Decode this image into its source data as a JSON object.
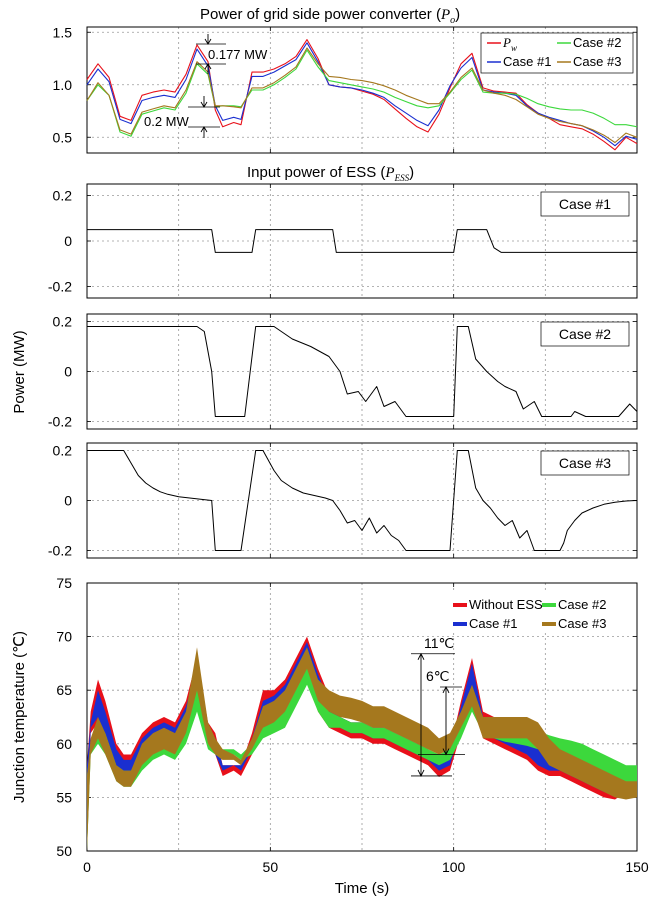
{
  "chart_data": [
    {
      "type": "line",
      "title": "Power of grid side power converter (",
      "title_symbol": "P",
      "title_subscript": "o",
      "title_suffix": ")",
      "xlim": [
        0,
        150
      ],
      "ylim": [
        0.35,
        1.55
      ],
      "yticks": [
        "0.5",
        "1.0",
        "1.5"
      ],
      "grid": true,
      "legend_position": "top-right",
      "x": [
        0,
        3,
        6,
        9,
        12,
        15,
        18,
        21,
        24,
        27,
        30,
        33,
        35,
        37,
        40,
        42,
        45,
        48,
        51,
        54,
        57,
        60,
        63,
        66,
        69,
        72,
        75,
        78,
        81,
        84,
        87,
        90,
        93,
        96,
        99,
        102,
        105,
        108,
        111,
        114,
        117,
        120,
        123,
        126,
        129,
        132,
        135,
        138,
        141,
        144,
        147,
        150
      ],
      "series": [
        {
          "name": "P",
          "name_sub": "w",
          "color": "#e8101a",
          "values": [
            1.05,
            1.2,
            1.07,
            0.7,
            0.66,
            0.9,
            0.93,
            0.95,
            0.93,
            1.1,
            1.38,
            1.22,
            0.76,
            0.6,
            0.64,
            0.62,
            1.12,
            1.12,
            1.15,
            1.2,
            1.27,
            1.43,
            1.25,
            1.0,
            0.98,
            0.97,
            0.94,
            0.91,
            0.86,
            0.77,
            0.68,
            0.6,
            0.55,
            0.72,
            0.97,
            1.2,
            1.3,
            0.97,
            0.94,
            0.93,
            0.92,
            0.81,
            0.73,
            0.68,
            0.62,
            0.6,
            0.58,
            0.53,
            0.46,
            0.38,
            0.5,
            0.44
          ]
        },
        {
          "name": "Case #1",
          "color": "#1a2fd0",
          "values": [
            1.0,
            1.15,
            1.03,
            0.67,
            0.63,
            0.85,
            0.88,
            0.9,
            0.88,
            1.05,
            1.34,
            1.18,
            0.8,
            0.66,
            0.69,
            0.67,
            1.08,
            1.08,
            1.12,
            1.18,
            1.24,
            1.4,
            1.22,
            1.0,
            0.98,
            0.97,
            0.95,
            0.92,
            0.88,
            0.8,
            0.73,
            0.66,
            0.61,
            0.76,
            0.99,
            1.16,
            1.26,
            0.95,
            0.93,
            0.92,
            0.9,
            0.8,
            0.73,
            0.69,
            0.66,
            0.63,
            0.61,
            0.56,
            0.5,
            0.42,
            0.51,
            0.48
          ]
        },
        {
          "name": "Case #2",
          "color": "#3cd83c",
          "values": [
            0.85,
            1.0,
            0.9,
            0.55,
            0.51,
            0.72,
            0.75,
            0.78,
            0.76,
            0.92,
            1.2,
            1.1,
            0.79,
            0.8,
            0.8,
            0.79,
            0.95,
            0.95,
            1.0,
            1.07,
            1.15,
            1.33,
            1.17,
            1.04,
            1.02,
            1.0,
            0.98,
            0.96,
            0.93,
            0.88,
            0.84,
            0.8,
            0.78,
            0.8,
            0.92,
            1.05,
            1.14,
            0.93,
            0.92,
            0.92,
            0.91,
            0.87,
            0.82,
            0.79,
            0.77,
            0.76,
            0.76,
            0.73,
            0.68,
            0.62,
            0.62,
            0.6
          ]
        },
        {
          "name": "Case #3",
          "color": "#a5781e",
          "values": [
            0.85,
            1.02,
            0.9,
            0.57,
            0.53,
            0.74,
            0.77,
            0.8,
            0.78,
            0.95,
            1.22,
            1.12,
            0.8,
            0.8,
            0.79,
            0.78,
            0.97,
            0.97,
            1.02,
            1.09,
            1.17,
            1.35,
            1.2,
            1.08,
            1.07,
            1.05,
            1.04,
            1.02,
            0.99,
            0.95,
            0.9,
            0.86,
            0.82,
            0.82,
            0.93,
            1.07,
            1.16,
            0.95,
            0.92,
            0.9,
            0.86,
            0.79,
            0.72,
            0.68,
            0.65,
            0.63,
            0.61,
            0.57,
            0.52,
            0.45,
            0.54,
            0.5
          ]
        }
      ],
      "annotations": [
        "0.177 MW",
        "0.2 MW"
      ]
    },
    {
      "type": "line",
      "title": "Input power of ESS (",
      "title_symbol": "P",
      "title_subscript": "ESS",
      "title_suffix": ")",
      "ylabel": "Power (MW)",
      "xlim": [
        0,
        150
      ],
      "panels": [
        {
          "name": "Case #1",
          "ylim": [
            -0.25,
            0.25
          ],
          "yticks": [
            "0.2",
            "0",
            "-0.2"
          ],
          "x": [
            0,
            34,
            35,
            45,
            46,
            67,
            68,
            100,
            101,
            109,
            111,
            113,
            150
          ],
          "values": [
            0.05,
            0.05,
            -0.05,
            -0.05,
            0.05,
            0.05,
            -0.05,
            -0.05,
            0.05,
            0.05,
            -0.03,
            -0.05,
            -0.05
          ]
        },
        {
          "name": "Case #2",
          "ylim": [
            -0.23,
            0.23
          ],
          "yticks": [
            "0.2",
            "0",
            "-0.2"
          ],
          "x": [
            0,
            30,
            32,
            34,
            35,
            43,
            46,
            51,
            56,
            61,
            66,
            69,
            71,
            74,
            76,
            79,
            81,
            84,
            87,
            92,
            97,
            100,
            101,
            104,
            106,
            109,
            112,
            114,
            117,
            119,
            122,
            124,
            127,
            132,
            133,
            136,
            142,
            145,
            148,
            150
          ],
          "values": [
            0.18,
            0.18,
            0.16,
            0.0,
            -0.18,
            -0.18,
            0.18,
            0.18,
            0.13,
            0.1,
            0.06,
            0.0,
            -0.09,
            -0.08,
            -0.12,
            -0.06,
            -0.14,
            -0.12,
            -0.18,
            -0.18,
            -0.18,
            -0.18,
            0.18,
            0.18,
            0.05,
            0.0,
            -0.04,
            -0.06,
            -0.08,
            -0.15,
            -0.12,
            -0.18,
            -0.18,
            -0.18,
            -0.16,
            -0.18,
            -0.18,
            -0.18,
            -0.13,
            -0.16
          ]
        },
        {
          "name": "Case #3",
          "ylim": [
            -0.23,
            0.23
          ],
          "yticks": [
            "0.2",
            "0",
            "-0.2"
          ],
          "x": [
            0,
            10,
            12,
            14,
            16,
            18,
            20,
            22,
            25,
            28,
            31,
            34,
            35,
            42,
            46,
            48,
            51,
            53,
            56,
            59,
            62,
            65,
            67,
            69,
            71,
            73,
            75,
            77,
            79,
            81,
            83,
            85,
            87,
            92,
            97,
            99,
            101,
            104,
            106,
            108,
            110,
            112,
            114,
            116,
            118,
            120,
            122,
            125,
            129,
            130,
            131,
            133,
            135,
            138,
            141,
            144,
            147,
            150
          ],
          "values": [
            0.2,
            0.2,
            0.15,
            0.1,
            0.07,
            0.05,
            0.035,
            0.025,
            0.015,
            0.01,
            0.005,
            0.0,
            -0.2,
            -0.2,
            0.2,
            0.2,
            0.12,
            0.08,
            0.05,
            0.03,
            0.02,
            0.01,
            0.0,
            -0.04,
            -0.09,
            -0.08,
            -0.12,
            -0.07,
            -0.13,
            -0.1,
            -0.14,
            -0.16,
            -0.2,
            -0.2,
            -0.2,
            -0.2,
            0.2,
            0.2,
            0.05,
            0.0,
            -0.03,
            -0.07,
            -0.1,
            -0.08,
            -0.15,
            -0.12,
            -0.2,
            -0.2,
            -0.2,
            -0.17,
            -0.12,
            -0.08,
            -0.05,
            -0.03,
            -0.015,
            -0.007,
            -0.002,
            0.0
          ]
        }
      ]
    },
    {
      "type": "area",
      "ylabel": "Junction temperature (℃)",
      "xlabel": "Time (s)",
      "xlim": [
        0,
        150
      ],
      "ylim": [
        50,
        75
      ],
      "yticks": [
        "75",
        "70",
        "65",
        "60",
        "55",
        "50"
      ],
      "xticks": [
        "0",
        "50",
        "100",
        "150"
      ],
      "grid": true,
      "legend_position": "top-right",
      "x": [
        0,
        1,
        3,
        5,
        8,
        10,
        12,
        15,
        18,
        21,
        24,
        27,
        30,
        33,
        35,
        37,
        40,
        42,
        45,
        48,
        51,
        54,
        57,
        60,
        63,
        66,
        69,
        72,
        75,
        78,
        81,
        84,
        87,
        90,
        93,
        96,
        99,
        102,
        105,
        108,
        111,
        114,
        117,
        120,
        123,
        126,
        129,
        132,
        135,
        138,
        141,
        144,
        147,
        150
      ],
      "series": [
        {
          "name": "Without ESS",
          "color": "#e8101a",
          "upper": [
            58,
            63,
            66,
            64,
            60,
            59,
            59,
            61,
            62,
            62.5,
            62,
            64,
            68,
            62,
            61,
            58,
            58,
            58,
            61,
            65,
            65,
            66,
            68,
            70,
            67,
            64.5,
            62.5,
            62,
            62,
            61.5,
            61.5,
            61,
            60.5,
            60,
            59.5,
            58.5,
            59.5,
            64,
            68,
            63,
            62.5,
            62,
            61.5,
            61.5,
            60.5,
            59,
            58.5,
            58,
            57.5,
            57,
            56.5,
            56,
            57,
            56.5
          ],
          "lower": [
            50,
            61,
            62,
            60,
            57,
            56.5,
            56.5,
            58,
            59,
            59.5,
            59,
            61,
            64,
            60,
            59,
            57,
            57.5,
            57,
            59,
            61,
            61.5,
            62,
            64,
            66,
            63,
            61.5,
            61,
            60.5,
            60.5,
            60,
            60,
            59.5,
            59,
            58.5,
            58,
            56.9,
            57.5,
            61,
            64,
            60.5,
            60,
            59.5,
            59,
            58.5,
            57.5,
            57,
            57,
            56.5,
            56,
            55.5,
            55,
            54.8,
            55.5,
            55.3
          ]
        },
        {
          "name": "Case #1",
          "color": "#1a2fd0",
          "upper": [
            58,
            62,
            65,
            63,
            59.5,
            58.5,
            58.5,
            60.5,
            61.5,
            62,
            61.5,
            63.5,
            67,
            61.5,
            60.5,
            58,
            58,
            58,
            60.5,
            64,
            64.5,
            65.5,
            67.5,
            69.5,
            66.5,
            64,
            62.5,
            62,
            62,
            61.5,
            61.5,
            61,
            60.5,
            60,
            59.5,
            58.5,
            59.5,
            63.5,
            67.5,
            62.5,
            62,
            61.5,
            61,
            61,
            60,
            59,
            58.5,
            58,
            57.5,
            57,
            56.5,
            56,
            57,
            56.5
          ],
          "lower": [
            50,
            61.5,
            62.5,
            60.5,
            57.5,
            57,
            57,
            58.5,
            59.5,
            60,
            59.5,
            61.5,
            64.5,
            60,
            59,
            57.5,
            58,
            57.5,
            59.5,
            61.5,
            62,
            62.5,
            64.5,
            66.5,
            63.5,
            62,
            61.5,
            61,
            61,
            60.5,
            60.5,
            60,
            59.5,
            59,
            58.5,
            57.5,
            58,
            61.5,
            64.5,
            61,
            60.5,
            60,
            59.5,
            59,
            58,
            57.5,
            57.5,
            57,
            56.5,
            56,
            55.5,
            55.3,
            56,
            55.8
          ]
        },
        {
          "name": "Case #2",
          "color": "#3cd83c",
          "upper": [
            57,
            60,
            62,
            61,
            58,
            57.5,
            57.5,
            59.5,
            60.5,
            61,
            60.5,
            62,
            65.5,
            61,
            60,
            59.5,
            59.5,
            59,
            60,
            62.5,
            63,
            64,
            65.5,
            67.5,
            65,
            63,
            62.5,
            62,
            62,
            61.5,
            61.5,
            61,
            60.5,
            60,
            59.5,
            59,
            59.5,
            62,
            65,
            62.5,
            62.2,
            62,
            61.7,
            61.5,
            61.2,
            60.8,
            60.5,
            60.3,
            60,
            59.5,
            59,
            58.5,
            58,
            58
          ],
          "lower": [
            50,
            59,
            60,
            59,
            56.5,
            56,
            56,
            57.5,
            58.5,
            59,
            58.5,
            60,
            63,
            59.5,
            59,
            58.5,
            59,
            58.5,
            59,
            60.5,
            61,
            61.5,
            63.5,
            65.5,
            63,
            61.5,
            61.5,
            61,
            61,
            60.5,
            60.5,
            60,
            59.5,
            59,
            58.5,
            58,
            58.5,
            60.5,
            63,
            61,
            60.5,
            60.2,
            60,
            59.8,
            59.5,
            59,
            58.8,
            58.5,
            58,
            57.5,
            57,
            56.5,
            56,
            56
          ]
        },
        {
          "name": "Case #3",
          "color": "#a5781e",
          "upper": [
            57,
            60.5,
            62.5,
            61,
            58,
            57.5,
            57.5,
            60,
            61,
            61.5,
            61,
            63,
            69,
            62,
            60.5,
            59.5,
            59,
            58.5,
            60.5,
            63.5,
            64,
            65,
            67,
            69,
            66,
            65,
            64.5,
            64.3,
            64,
            63.5,
            63.5,
            63,
            62.5,
            62,
            61.5,
            60.5,
            61,
            63,
            65.5,
            62.5,
            62.5,
            62.5,
            62.5,
            62.5,
            62,
            60.5,
            59.5,
            59,
            58.5,
            58,
            57.5,
            57,
            56.5,
            56.5
          ],
          "lower": [
            50,
            59,
            60.5,
            59,
            56.5,
            56,
            56,
            58,
            59,
            59.5,
            59,
            61,
            65,
            60,
            59,
            58.5,
            58.5,
            58,
            59.5,
            61.5,
            62,
            63,
            65,
            67,
            64,
            63,
            62.5,
            62.3,
            62,
            61.5,
            61.5,
            61,
            60.5,
            60,
            59.5,
            59,
            59.5,
            61.5,
            63.5,
            60.5,
            60.5,
            60.5,
            60.5,
            60.5,
            59.5,
            58,
            57.5,
            57,
            56.5,
            56,
            55.5,
            55,
            54.8,
            55
          ]
        }
      ],
      "annotations": [
        "11℃",
        "6℃"
      ]
    }
  ]
}
